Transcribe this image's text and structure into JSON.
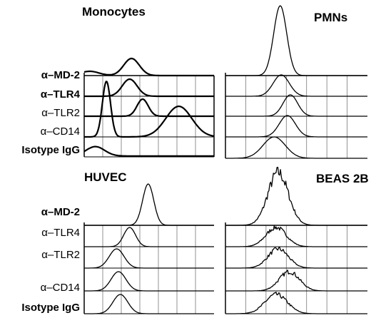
{
  "chart_data": [
    {
      "type": "area",
      "title": "Monocytes",
      "series": [
        {
          "name": "α–MD-2",
          "peak": 2.55,
          "width": 0.42
        },
        {
          "name": "α–TLR4",
          "peak": 2.45,
          "width": 0.4
        },
        {
          "name": "α–TLR2",
          "peak": 3.15,
          "width": 0.3
        },
        {
          "name": "α–CD14",
          "peak": 1.2,
          "width": 0.22
        },
        {
          "name": "Isotype IgG",
          "peak": 0.45,
          "width": 0.35
        }
      ],
      "xlim": [
        0,
        7
      ],
      "grid": true
    },
    {
      "type": "area",
      "title": "PMNs",
      "series": [
        {
          "name": "α–MD-2",
          "peak": 2.7,
          "width": 0.32
        },
        {
          "name": "α–TLR4",
          "peak": 2.75,
          "width": 0.4
        },
        {
          "name": "α–TLR2",
          "peak": 3.2,
          "width": 0.36
        },
        {
          "name": "α–CD14",
          "peak": 3.05,
          "width": 0.4
        },
        {
          "name": "Isotype IgG",
          "peak": 2.4,
          "width": 0.55
        }
      ],
      "xlim": [
        0,
        7
      ],
      "grid": true
    },
    {
      "type": "area",
      "title": "HUVEC",
      "series": [
        {
          "name": "α–MD-2",
          "peak": 3.45,
          "width": 0.3
        },
        {
          "name": "α–TLR4",
          "peak": 2.45,
          "width": 0.32
        },
        {
          "name": "α–TLR2",
          "peak": 1.75,
          "width": 0.4
        },
        {
          "name": "α–CD14",
          "peak": 1.85,
          "width": 0.4
        },
        {
          "name": "Isotype IgG",
          "peak": 1.95,
          "width": 0.4
        }
      ],
      "xlim": [
        0,
        7
      ],
      "grid": true
    },
    {
      "type": "area",
      "title": "BEAS 2B",
      "series": [
        {
          "name": "α–MD-2",
          "peak": 2.6,
          "width": 0.5
        },
        {
          "name": "α–TLR4",
          "peak": 2.5,
          "width": 0.5
        },
        {
          "name": "α–TLR2",
          "peak": 2.6,
          "width": 0.5
        },
        {
          "name": "α–CD14",
          "peak": 3.15,
          "width": 0.5
        },
        {
          "name": "Isotype IgG",
          "peak": 2.5,
          "width": 0.55
        }
      ],
      "xlim": [
        0,
        7
      ],
      "grid": true
    }
  ]
}
